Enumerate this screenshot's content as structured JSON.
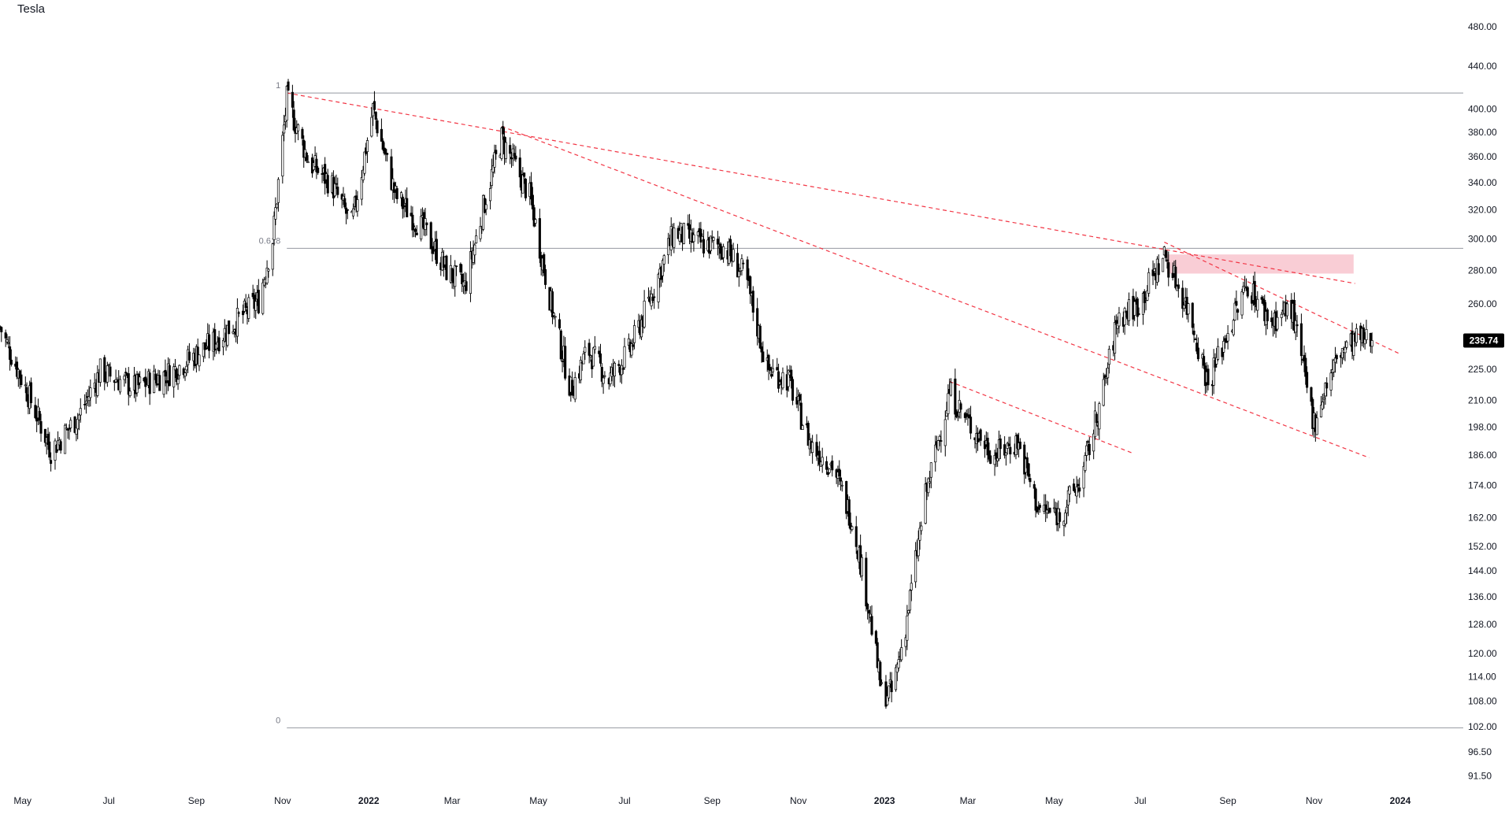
{
  "chart_data": {
    "type": "candlestick",
    "title": "Tesla",
    "scale": "log",
    "ylim": [
      88,
      490
    ],
    "y_ticks": [
      {
        "value": 480,
        "label": "480.00"
      },
      {
        "value": 440,
        "label": "440.00"
      },
      {
        "value": 400,
        "label": "400.00"
      },
      {
        "value": 380,
        "label": "380.00"
      },
      {
        "value": 360,
        "label": "360.00"
      },
      {
        "value": 340,
        "label": "340.00"
      },
      {
        "value": 320,
        "label": "320.00"
      },
      {
        "value": 300,
        "label": "300.00"
      },
      {
        "value": 280,
        "label": "280.00"
      },
      {
        "value": 260,
        "label": "260.00"
      },
      {
        "value": 240,
        "label": "240.00"
      },
      {
        "value": 225,
        "label": "225.00"
      },
      {
        "value": 210,
        "label": "210.00"
      },
      {
        "value": 198,
        "label": "198.00"
      },
      {
        "value": 186,
        "label": "186.00"
      },
      {
        "value": 174,
        "label": "174.00"
      },
      {
        "value": 162,
        "label": "162.00"
      },
      {
        "value": 152,
        "label": "152.00"
      },
      {
        "value": 144,
        "label": "144.00"
      },
      {
        "value": 136,
        "label": "136.00"
      },
      {
        "value": 128,
        "label": "128.00"
      },
      {
        "value": 120,
        "label": "120.00"
      },
      {
        "value": 114,
        "label": "114.00"
      },
      {
        "value": 108,
        "label": "108.00"
      },
      {
        "value": 102,
        "label": "102.00"
      },
      {
        "value": 96.5,
        "label": "96.50"
      },
      {
        "value": 91.5,
        "label": "91.50"
      }
    ],
    "x_ticks": [
      {
        "date": "2021-05-01",
        "label": "May",
        "bold": false
      },
      {
        "date": "2021-07-01",
        "label": "Jul",
        "bold": false
      },
      {
        "date": "2021-09-01",
        "label": "Sep",
        "bold": false
      },
      {
        "date": "2021-11-01",
        "label": "Nov",
        "bold": false
      },
      {
        "date": "2022-01-01",
        "label": "2022",
        "bold": true
      },
      {
        "date": "2022-03-01",
        "label": "Mar",
        "bold": false
      },
      {
        "date": "2022-05-01",
        "label": "May",
        "bold": false
      },
      {
        "date": "2022-07-01",
        "label": "Jul",
        "bold": false
      },
      {
        "date": "2022-09-01",
        "label": "Sep",
        "bold": false
      },
      {
        "date": "2022-11-01",
        "label": "Nov",
        "bold": false
      },
      {
        "date": "2023-01-01",
        "label": "2023",
        "bold": true
      },
      {
        "date": "2023-03-01",
        "label": "Mar",
        "bold": false
      },
      {
        "date": "2023-05-01",
        "label": "May",
        "bold": false
      },
      {
        "date": "2023-07-01",
        "label": "Jul",
        "bold": false
      },
      {
        "date": "2023-09-01",
        "label": "Sep",
        "bold": false
      },
      {
        "date": "2023-11-01",
        "label": "Nov",
        "bold": false
      },
      {
        "date": "2024-01-01",
        "label": "2024",
        "bold": true
      }
    ],
    "anchors": [
      [
        "2021-04-15",
        247
      ],
      [
        "2021-05-10",
        205
      ],
      [
        "2021-05-21",
        188
      ],
      [
        "2021-06-10",
        203
      ],
      [
        "2021-06-25",
        224
      ],
      [
        "2021-07-20",
        216
      ],
      [
        "2021-08-15",
        224
      ],
      [
        "2021-09-15",
        240
      ],
      [
        "2021-10-15",
        262
      ],
      [
        "2021-10-25",
        300
      ],
      [
        "2021-11-04",
        409
      ],
      [
        "2021-11-20",
        355
      ],
      [
        "2021-12-05",
        340
      ],
      [
        "2021-12-20",
        310
      ],
      [
        "2022-01-04",
        400
      ],
      [
        "2022-01-20",
        330
      ],
      [
        "2022-02-10",
        305
      ],
      [
        "2022-02-25",
        280
      ],
      [
        "2022-03-10",
        270
      ],
      [
        "2022-03-25",
        330
      ],
      [
        "2022-04-05",
        375
      ],
      [
        "2022-04-25",
        330
      ],
      [
        "2022-05-10",
        260
      ],
      [
        "2022-05-24",
        215
      ],
      [
        "2022-06-05",
        235
      ],
      [
        "2022-06-20",
        220
      ],
      [
        "2022-07-05",
        235
      ],
      [
        "2022-07-20",
        265
      ],
      [
        "2022-08-05",
        305
      ],
      [
        "2022-08-25",
        297
      ],
      [
        "2022-09-10",
        295
      ],
      [
        "2022-09-25",
        275
      ],
      [
        "2022-10-10",
        225
      ],
      [
        "2022-10-25",
        220
      ],
      [
        "2022-11-10",
        190
      ],
      [
        "2022-11-25",
        182
      ],
      [
        "2022-12-10",
        160
      ],
      [
        "2022-12-20",
        135
      ],
      [
        "2022-12-30",
        110
      ],
      [
        "2023-01-06",
        110
      ],
      [
        "2023-01-15",
        125
      ],
      [
        "2023-01-30",
        170
      ],
      [
        "2023-02-16",
        214
      ],
      [
        "2023-03-01",
        200
      ],
      [
        "2023-03-20",
        186
      ],
      [
        "2023-04-05",
        192
      ],
      [
        "2023-04-20",
        165
      ],
      [
        "2023-05-05",
        163
      ],
      [
        "2023-05-20",
        176
      ],
      [
        "2023-06-05",
        215
      ],
      [
        "2023-06-15",
        252
      ],
      [
        "2023-06-30",
        260
      ],
      [
        "2023-07-18",
        290
      ],
      [
        "2023-08-05",
        255
      ],
      [
        "2023-08-18",
        218
      ],
      [
        "2023-09-01",
        245
      ],
      [
        "2023-09-15",
        272
      ],
      [
        "2023-10-01",
        250
      ],
      [
        "2023-10-16",
        258
      ],
      [
        "2023-10-28",
        212
      ],
      [
        "2023-11-01",
        200
      ],
      [
        "2023-11-10",
        218
      ],
      [
        "2023-11-20",
        234
      ],
      [
        "2023-12-01",
        240
      ],
      [
        "2023-12-12",
        239.74
      ]
    ],
    "last_price": 239.74,
    "last_price_label": "239.74",
    "fib_levels": [
      {
        "label": "1",
        "value": 414.5
      },
      {
        "label": "0.618",
        "value": 294
      },
      {
        "label": "0",
        "value": 101.8
      }
    ],
    "trendlines": [
      {
        "from": [
          "2021-11-04",
          414.5
        ],
        "to": [
          "2023-11-30",
          272
        ]
      },
      {
        "from": [
          "2022-04-05",
          385
        ],
        "to": [
          "2023-12-10",
          185
        ]
      },
      {
        "from": [
          "2023-02-16",
          219
        ],
        "to": [
          "2023-06-25",
          187
        ]
      },
      {
        "from": [
          "2023-07-18",
          298
        ],
        "to": [
          "2023-12-31",
          233
        ]
      }
    ],
    "zone": {
      "from": "2023-07-20",
      "to": "2023-11-29",
      "low": 278,
      "high": 290
    },
    "colors": {
      "candle": "#000000",
      "gridline": "#9598a1",
      "trendline": "#f23645",
      "zone": "#f8c8d0",
      "price_badge_bg": "#000000",
      "price_badge_text": "#ffffff"
    }
  }
}
